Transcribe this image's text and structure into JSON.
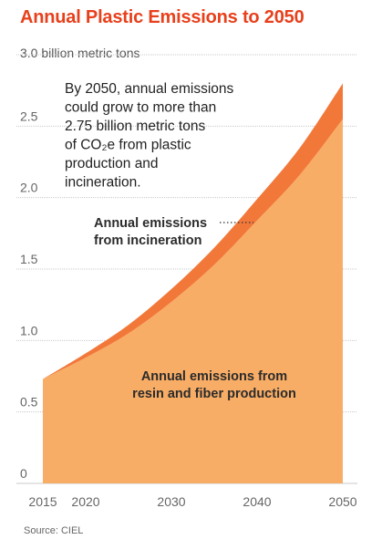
{
  "title": "Annual Plastic Emissions to 2050",
  "source": "Source: CIEL",
  "chart_data": {
    "type": "area",
    "stacked": true,
    "unit_label": "3.0 billion metric tons",
    "x": [
      2015,
      2020,
      2025,
      2030,
      2035,
      2040,
      2045,
      2050
    ],
    "xticks": [
      2015,
      2020,
      2030,
      2040,
      2050
    ],
    "yticks": [
      "0",
      "0.5",
      "1.0",
      "1.5",
      "2.0",
      "2.5"
    ],
    "xlim": [
      2015,
      2050
    ],
    "ylim": [
      0,
      3.0
    ],
    "grid": "horizontal",
    "series": [
      {
        "name": "Annual emissions from resin and fiber production",
        "color": "#f8ad66",
        "values": [
          0.73,
          0.88,
          1.05,
          1.27,
          1.53,
          1.84,
          2.16,
          2.55
        ]
      },
      {
        "name": "Annual emissions from incineration",
        "color": "#f2783a",
        "values": [
          0.0,
          0.03,
          0.06,
          0.09,
          0.12,
          0.15,
          0.19,
          0.25
        ]
      }
    ],
    "annotation": [
      "By 2050, annual emissions",
      "could grow to more than",
      "2.75 billion metric tons",
      "of CO₂e from plastic",
      "production and",
      "incineration."
    ],
    "label_incineration": [
      "Annual emissions",
      "from incineration"
    ],
    "label_production": [
      "Annual emissions from",
      "resin and fiber production"
    ]
  }
}
